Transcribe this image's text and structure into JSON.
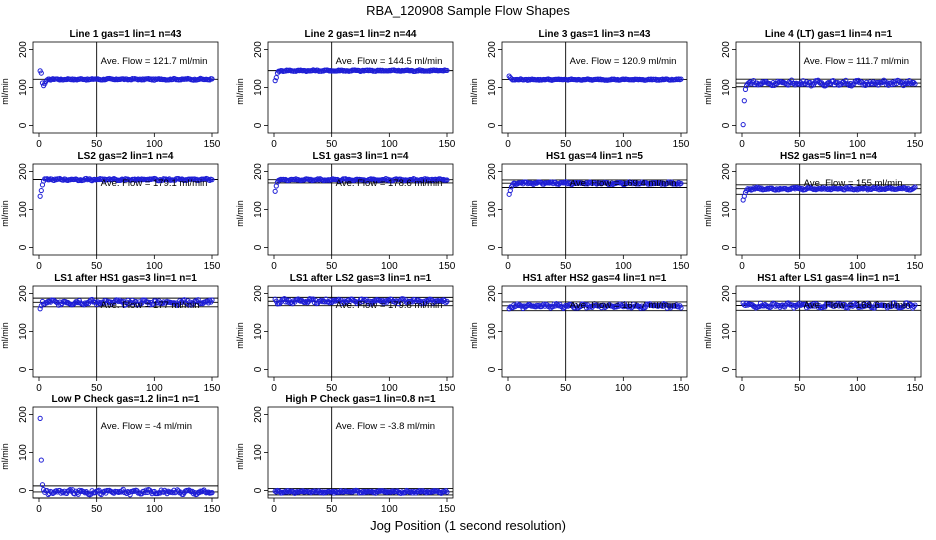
{
  "figure": {
    "title": "RBA_120908  Sample Flow Shapes",
    "xlabel": "Jog Position (1 second resolution)"
  },
  "style": {
    "point_color": "#1f1fd6",
    "axis_color": "#000000"
  },
  "chart_data": [
    {
      "type": "scatter",
      "title": "Line 1 gas=1 lin=1 n=43",
      "ylabel": "ml/min",
      "xlim": [
        0,
        150
      ],
      "ylim": [
        -20,
        220
      ],
      "xticks": [
        0,
        50,
        100,
        150
      ],
      "yticks": [
        0,
        100,
        200
      ],
      "vline": 50,
      "hlines": [
        121.7
      ],
      "annotation": "Ave. Flow =  121.7  ml/min",
      "start": [
        144,
        138,
        112,
        105,
        110,
        116,
        120
      ],
      "level": 121.7,
      "noise": 1.5
    },
    {
      "type": "scatter",
      "title": "Line 2 gas=1 lin=2 n=44",
      "ylabel": "ml/min",
      "xlim": [
        0,
        150
      ],
      "ylim": [
        -20,
        220
      ],
      "xticks": [
        0,
        50,
        100,
        150
      ],
      "yticks": [
        0,
        100,
        200
      ],
      "vline": 50,
      "hlines": [
        144.5
      ],
      "annotation": "Ave. Flow =  144.5  ml/min",
      "start": [
        118,
        126,
        138,
        143
      ],
      "level": 144.5,
      "noise": 1.5
    },
    {
      "type": "scatter",
      "title": "Line 3 gas=1 lin=3 n=43",
      "ylabel": "ml/min",
      "xlim": [
        0,
        150
      ],
      "ylim": [
        -20,
        220
      ],
      "xticks": [
        0,
        50,
        100,
        150
      ],
      "yticks": [
        0,
        100,
        200
      ],
      "vline": 50,
      "hlines": [
        120.9
      ],
      "annotation": "Ave. Flow =  120.9  ml/min",
      "start": [
        130,
        126,
        123
      ],
      "level": 120.9,
      "noise": 1.2
    },
    {
      "type": "scatter",
      "title": "Line 4 (LT) gas=1 lin=4 n=1",
      "ylabel": "ml/min",
      "xlim": [
        0,
        150
      ],
      "ylim": [
        -20,
        220
      ],
      "xticks": [
        0,
        50,
        100,
        150
      ],
      "yticks": [
        0,
        100,
        200
      ],
      "vline": 50,
      "hlines": [
        111.7,
        102,
        122
      ],
      "annotation": "Ave. Flow =  111.7  ml/min",
      "start": [
        2,
        65,
        95,
        105,
        110
      ],
      "level": 111.7,
      "noise": 5
    },
    {
      "type": "scatter",
      "title": "LS2 gas=2 lin=1 n=4",
      "ylabel": "ml/min",
      "xlim": [
        0,
        150
      ],
      "ylim": [
        -20,
        220
      ],
      "xticks": [
        0,
        50,
        100,
        150
      ],
      "yticks": [
        0,
        100,
        200
      ],
      "vline": 50,
      "hlines": [
        179.1
      ],
      "annotation": "Ave. Flow =  179.1  ml/min",
      "start": [
        135,
        150,
        165,
        175
      ],
      "level": 179.1,
      "noise": 2
    },
    {
      "type": "scatter",
      "title": "LS1 gas=3 lin=1 n=4",
      "ylabel": "ml/min",
      "xlim": [
        0,
        150
      ],
      "ylim": [
        -20,
        220
      ],
      "xticks": [
        0,
        50,
        100,
        150
      ],
      "yticks": [
        0,
        100,
        200
      ],
      "vline": 50,
      "hlines": [
        178.6,
        170
      ],
      "annotation": "Ave. Flow =  178.6  ml/min",
      "start": [
        148,
        162,
        172,
        177
      ],
      "level": 178.6,
      "noise": 2
    },
    {
      "type": "scatter",
      "title": "HS1 gas=4 lin=1 n=5",
      "ylabel": "ml/min",
      "xlim": [
        0,
        150
      ],
      "ylim": [
        -20,
        220
      ],
      "xticks": [
        0,
        50,
        100,
        150
      ],
      "yticks": [
        0,
        100,
        200
      ],
      "vline": 50,
      "hlines": [
        169.4,
        158,
        178
      ],
      "annotation": "Ave. Flow =  169.4  ml/min",
      "start": [
        140,
        150,
        160,
        165
      ],
      "level": 169.4,
      "noise": 2.5
    },
    {
      "type": "scatter",
      "title": "HS2 gas=5 lin=1 n=4",
      "ylabel": "ml/min",
      "xlim": [
        0,
        150
      ],
      "ylim": [
        -20,
        220
      ],
      "xticks": [
        0,
        50,
        100,
        150
      ],
      "yticks": [
        0,
        100,
        200
      ],
      "vline": 50,
      "hlines": [
        155,
        140,
        165
      ],
      "annotation": "Ave. Flow =  155  ml/min",
      "start": [
        125,
        135,
        145,
        150
      ],
      "level": 155,
      "noise": 2.5
    },
    {
      "type": "scatter",
      "title": "LS1 after HS1 gas=3 lin=1 n=1",
      "ylabel": "ml/min",
      "xlim": [
        0,
        150
      ],
      "ylim": [
        -20,
        220
      ],
      "xticks": [
        0,
        50,
        100,
        150
      ],
      "yticks": [
        0,
        100,
        200
      ],
      "vline": 50,
      "hlines": [
        177,
        165,
        188
      ],
      "annotation": "Ave. Flow =  177  ml/min",
      "start": [
        160,
        168
      ],
      "level": 177,
      "noise": 5
    },
    {
      "type": "scatter",
      "title": "LS1 after LS2 gas=3 lin=1 n=1",
      "ylabel": "ml/min",
      "xlim": [
        0,
        150
      ],
      "ylim": [
        -20,
        220
      ],
      "xticks": [
        0,
        50,
        100,
        150
      ],
      "yticks": [
        0,
        100,
        200
      ],
      "vline": 50,
      "hlines": [
        179.8,
        168,
        190
      ],
      "annotation": "Ave. Flow =  179.8  ml/min",
      "start": [
        185,
        180
      ],
      "level": 179.8,
      "noise": 4.5
    },
    {
      "type": "scatter",
      "title": "HS1 after HS2 gas=4 lin=1 n=1",
      "ylabel": "ml/min",
      "xlim": [
        0,
        150
      ],
      "ylim": [
        -20,
        220
      ],
      "xticks": [
        0,
        50,
        100,
        150
      ],
      "yticks": [
        0,
        100,
        200
      ],
      "vline": 50,
      "hlines": [
        167.7,
        155,
        178
      ],
      "annotation": "Ave. Flow =  167.7  ml/min",
      "start": [
        160,
        165
      ],
      "level": 167.7,
      "noise": 4.5
    },
    {
      "type": "scatter",
      "title": "HS1 after LS1 gas=4 lin=1 n=1",
      "ylabel": "ml/min",
      "xlim": [
        0,
        150
      ],
      "ylim": [
        -20,
        220
      ],
      "xticks": [
        0,
        50,
        100,
        150
      ],
      "yticks": [
        0,
        100,
        200
      ],
      "vline": 50,
      "hlines": [
        168.6,
        156,
        180
      ],
      "annotation": "Ave. Flow =  168.6  ml/min",
      "start": [
        175,
        170
      ],
      "level": 168.6,
      "noise": 4.5
    },
    {
      "type": "scatter",
      "title": "Low P Check gas=1.2 lin=1 n=1",
      "ylabel": "ml/min",
      "xlim": [
        0,
        150
      ],
      "ylim": [
        -20,
        220
      ],
      "xticks": [
        0,
        50,
        100,
        150
      ],
      "yticks": [
        0,
        100,
        200
      ],
      "vline": 50,
      "hlines": [
        -4,
        -20,
        12
      ],
      "annotation": "Ave. Flow =  -4  ml/min",
      "start": [
        190,
        80,
        15,
        2,
        -5
      ],
      "level": -4,
      "noise": 5
    },
    {
      "type": "scatter",
      "title": "High P Check gas=1 lin=0.8 n=1",
      "ylabel": "ml/min",
      "xlim": [
        0,
        150
      ],
      "ylim": [
        -20,
        220
      ],
      "xticks": [
        0,
        50,
        100,
        150
      ],
      "yticks": [
        0,
        100,
        200
      ],
      "vline": 50,
      "hlines": [
        -3.8,
        -12,
        5
      ],
      "annotation": "Ave. Flow =  -3.8  ml/min",
      "start": [
        -2,
        -4
      ],
      "level": -3.8,
      "noise": 2.5
    }
  ]
}
